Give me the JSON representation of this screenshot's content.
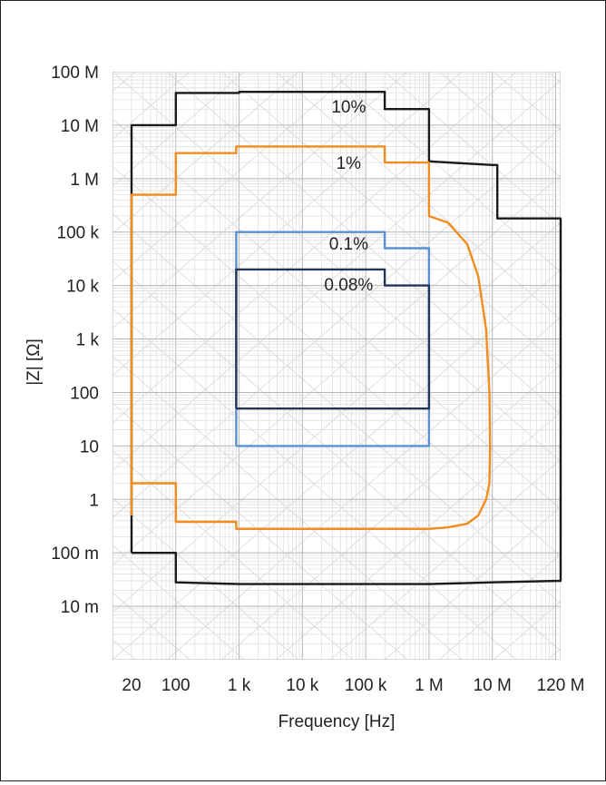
{
  "chart_data": {
    "type": "line",
    "xlabel": "Frequency [Hz]",
    "ylabel": "|Z| [Ω]",
    "x_scale": "log",
    "y_scale": "log",
    "xlim": [
      10,
      120000000
    ],
    "ylim": [
      0.001,
      100000000
    ],
    "grid": true,
    "x_ticks": [
      {
        "value": 20,
        "label": "20"
      },
      {
        "value": 100,
        "label": "100"
      },
      {
        "value": 1000,
        "label": "1 k"
      },
      {
        "value": 10000,
        "label": "10 k"
      },
      {
        "value": 100000,
        "label": "100 k"
      },
      {
        "value": 1000000,
        "label": "1 M"
      },
      {
        "value": 10000000,
        "label": "10 M"
      },
      {
        "value": 120000000,
        "label": "120 M"
      }
    ],
    "y_ticks": [
      {
        "value": 100000000,
        "label": "100 M"
      },
      {
        "value": 10000000,
        "label": "10 M"
      },
      {
        "value": 1000000,
        "label": "1 M"
      },
      {
        "value": 100000,
        "label": "100 k"
      },
      {
        "value": 10000,
        "label": "10 k"
      },
      {
        "value": 1000,
        "label": "1 k"
      },
      {
        "value": 100,
        "label": "100"
      },
      {
        "value": 10,
        "label": "10"
      },
      {
        "value": 1,
        "label": "1"
      },
      {
        "value": 0.1,
        "label": "100 m"
      },
      {
        "value": 0.01,
        "label": "10 m"
      }
    ],
    "series": [
      {
        "name": "10%",
        "color": "#1a1a1a",
        "points": [
          [
            20,
            0.1
          ],
          [
            20,
            10000000
          ],
          [
            100,
            10000000
          ],
          [
            100,
            40000000
          ],
          [
            1000,
            40000000
          ],
          [
            1000,
            42000000
          ],
          [
            200000,
            42000000
          ],
          [
            200000,
            20000000
          ],
          [
            1000000,
            20000000
          ],
          [
            1000000,
            2100000
          ],
          [
            10000000,
            1800000
          ],
          [
            12000000,
            1800000
          ],
          [
            12000000,
            180000
          ],
          [
            120000000,
            180000
          ],
          [
            120000000,
            0.03
          ],
          [
            10000000,
            0.028
          ],
          [
            1000000,
            0.026
          ],
          [
            1000,
            0.026
          ],
          [
            100,
            0.028
          ],
          [
            100,
            0.1
          ],
          [
            20,
            0.1
          ]
        ]
      },
      {
        "name": "1%",
        "color": "#f28c1c",
        "points": [
          [
            20,
            0.5
          ],
          [
            20,
            500000
          ],
          [
            100,
            500000
          ],
          [
            100,
            3000000
          ],
          [
            900,
            3000000
          ],
          [
            900,
            4000000
          ],
          [
            200000,
            4000000
          ],
          [
            200000,
            2000000
          ],
          [
            1000000,
            2000000
          ],
          [
            1000000,
            200000
          ],
          [
            2000000,
            150000
          ],
          [
            4000000,
            60000
          ],
          [
            6000000,
            15000
          ],
          [
            8000000,
            1500
          ],
          [
            9000000,
            100
          ],
          [
            9200000,
            10
          ],
          [
            9000000,
            2
          ],
          [
            8000000,
            1
          ],
          [
            6000000,
            0.5
          ],
          [
            4000000,
            0.35
          ],
          [
            2000000,
            0.3
          ],
          [
            1000000,
            0.28
          ],
          [
            900,
            0.28
          ],
          [
            900,
            0.38
          ],
          [
            100,
            0.38
          ],
          [
            100,
            2
          ],
          [
            20,
            2
          ]
        ]
      },
      {
        "name": "0.1%",
        "color": "#5b8fd1",
        "points": [
          [
            900,
            10
          ],
          [
            900,
            100000
          ],
          [
            200000,
            100000
          ],
          [
            200000,
            50000
          ],
          [
            1000000,
            50000
          ],
          [
            1000000,
            10
          ],
          [
            900,
            10
          ]
        ]
      },
      {
        "name": "0.08%",
        "color": "#22365a",
        "points": [
          [
            900,
            50
          ],
          [
            1000000,
            50
          ],
          [
            1000000,
            10000
          ],
          [
            200000,
            10000
          ],
          [
            200000,
            20000
          ],
          [
            900,
            20000
          ],
          [
            900,
            50
          ]
        ]
      }
    ],
    "annotations": [
      {
        "text": "10%",
        "x": 20000,
        "y": 20000000
      },
      {
        "text": "1%",
        "x": 20000,
        "y": 1800000
      },
      {
        "text": "0.1%",
        "x": 20000,
        "y": 55000
      },
      {
        "text": "0.08%",
        "x": 20000,
        "y": 9500
      }
    ]
  }
}
